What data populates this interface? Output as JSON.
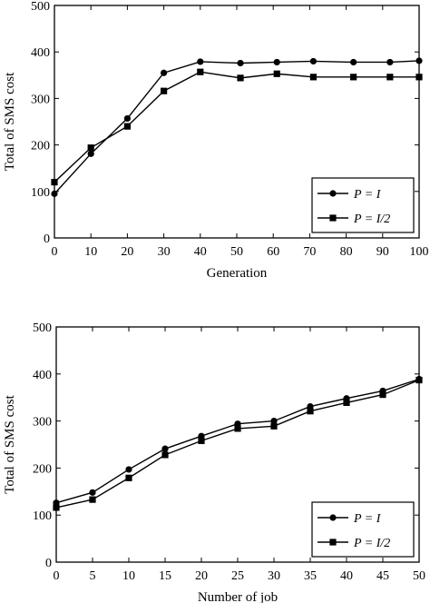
{
  "chart_data": [
    {
      "type": "line",
      "xlabel": "Generation",
      "ylabel": "Total of SMS cost",
      "xlim": [
        0,
        100
      ],
      "ylim": [
        0,
        500
      ],
      "xticks": [
        0,
        10,
        20,
        30,
        40,
        50,
        60,
        70,
        80,
        90,
        100
      ],
      "yticks": [
        0,
        100,
        200,
        300,
        400,
        500
      ],
      "grid": false,
      "legend_position": "bottom-right",
      "series": [
        {
          "name": "P = I",
          "marker": "circle",
          "x": [
            0,
            10,
            20,
            30,
            40,
            51,
            61,
            71,
            82,
            92,
            102
          ],
          "y": [
            95,
            181,
            257,
            355,
            379,
            376,
            378,
            380,
            378,
            378,
            381
          ]
        },
        {
          "name": "P = I/2",
          "marker": "square",
          "x": [
            0,
            10,
            20,
            30,
            40,
            51,
            61,
            71,
            82,
            92,
            102
          ],
          "y": [
            120,
            194,
            240,
            316,
            357,
            344,
            353,
            346,
            346,
            346,
            346
          ]
        }
      ]
    },
    {
      "type": "line",
      "xlabel": "Number of job",
      "ylabel": "Total of SMS cost",
      "xlim": [
        0,
        50
      ],
      "ylim": [
        0,
        500
      ],
      "xticks": [
        0,
        5,
        10,
        15,
        20,
        25,
        30,
        35,
        40,
        45,
        50
      ],
      "yticks": [
        0,
        100,
        200,
        300,
        400,
        500
      ],
      "grid": false,
      "legend_position": "bottom-right",
      "series": [
        {
          "name": "P = I",
          "marker": "circle",
          "x": [
            0,
            5,
            10,
            15,
            20,
            25,
            30,
            35,
            40,
            45,
            50
          ],
          "y": [
            126,
            148,
            197,
            241,
            268,
            294,
            300,
            331,
            348,
            364,
            389
          ]
        },
        {
          "name": "P = I/2",
          "marker": "square",
          "x": [
            0,
            5,
            10,
            15,
            20,
            25,
            30,
            35,
            40,
            45,
            50
          ],
          "y": [
            116,
            133,
            179,
            228,
            258,
            284,
            289,
            321,
            339,
            356,
            387
          ]
        }
      ]
    }
  ]
}
